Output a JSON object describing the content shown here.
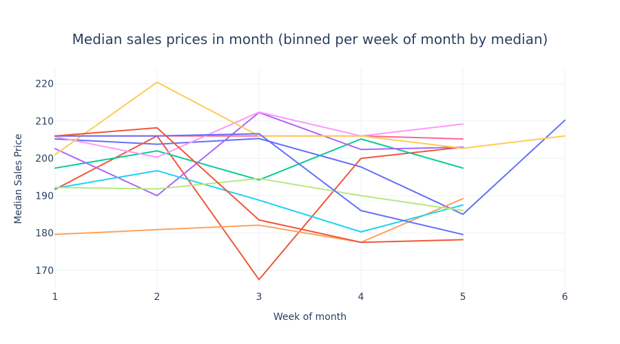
{
  "chart_data": {
    "type": "line",
    "title": "Median sales prices in month (binned per week of month by median)",
    "xlabel": "Week of month",
    "ylabel": "Median Sales Price",
    "xlim": [
      1,
      6
    ],
    "ylim": [
      165,
      224
    ],
    "x_ticks": [
      1,
      2,
      3,
      4,
      5,
      6
    ],
    "y_ticks": [
      170,
      180,
      190,
      200,
      210,
      220
    ],
    "grid": true,
    "legend": "none",
    "series": [
      {
        "color": "#636efa",
        "points": [
          [
            1,
            205.2
          ],
          [
            2,
            203.8
          ],
          [
            3,
            205.3
          ],
          [
            4,
            197.7
          ],
          [
            5,
            185.0
          ],
          [
            6,
            210.2
          ]
        ]
      },
      {
        "color": "#ef553b",
        "points": [
          [
            1,
            191.7
          ],
          [
            2,
            206.0
          ],
          [
            3,
            167.5
          ],
          [
            4,
            200.0
          ],
          [
            5,
            203.0
          ]
        ]
      },
      {
        "color": "#00cc96",
        "points": [
          [
            1,
            197.4
          ],
          [
            2,
            202.0
          ],
          [
            3,
            194.2
          ],
          [
            4,
            205.2
          ],
          [
            5,
            197.4
          ]
        ]
      },
      {
        "color": "#ab63fa",
        "points": [
          [
            1,
            202.6
          ],
          [
            2,
            190.0
          ],
          [
            3,
            212.3
          ],
          [
            4,
            202.4
          ],
          [
            5,
            203.0
          ]
        ]
      },
      {
        "color": "#ffa15a",
        "points": [
          [
            1,
            179.6
          ],
          [
            2,
            180.9
          ],
          [
            3,
            182.1
          ],
          [
            4,
            177.5
          ],
          [
            5,
            189.2
          ]
        ]
      },
      {
        "color": "#19d3f3",
        "points": [
          [
            1,
            192.0
          ],
          [
            2,
            196.7
          ],
          [
            3,
            188.8
          ],
          [
            4,
            180.3
          ],
          [
            5,
            187.5
          ]
        ]
      },
      {
        "color": "#ff6692",
        "points": [
          [
            1,
            206.0
          ],
          [
            2,
            206.0
          ],
          [
            3,
            206.0
          ],
          [
            4,
            206.0
          ],
          [
            5,
            205.2
          ]
        ]
      },
      {
        "color": "#b6e880",
        "points": [
          [
            1,
            192.2
          ],
          [
            2,
            191.8
          ],
          [
            3,
            194.6
          ],
          [
            4,
            190.0
          ],
          [
            5,
            186.0
          ]
        ]
      },
      {
        "color": "#ff97ff",
        "points": [
          [
            1,
            205.8
          ],
          [
            2,
            200.3
          ],
          [
            3,
            212.4
          ],
          [
            4,
            206.0
          ],
          [
            5,
            209.2
          ]
        ]
      },
      {
        "color": "#fecb52",
        "points": [
          [
            1,
            201.0
          ],
          [
            2,
            220.4
          ],
          [
            3,
            206.0
          ],
          [
            4,
            206.0
          ],
          [
            5,
            202.7
          ],
          [
            6,
            206.0
          ]
        ]
      },
      {
        "color": "#636efa",
        "points": [
          [
            1,
            206.0
          ],
          [
            2,
            206.0
          ],
          [
            3,
            206.6
          ],
          [
            4,
            186.0
          ],
          [
            5,
            179.6
          ]
        ]
      },
      {
        "color": "#ef553b",
        "points": [
          [
            1,
            206.0
          ],
          [
            2,
            208.2
          ],
          [
            3,
            183.5
          ],
          [
            4,
            177.5
          ],
          [
            5,
            178.2
          ]
        ]
      }
    ]
  }
}
